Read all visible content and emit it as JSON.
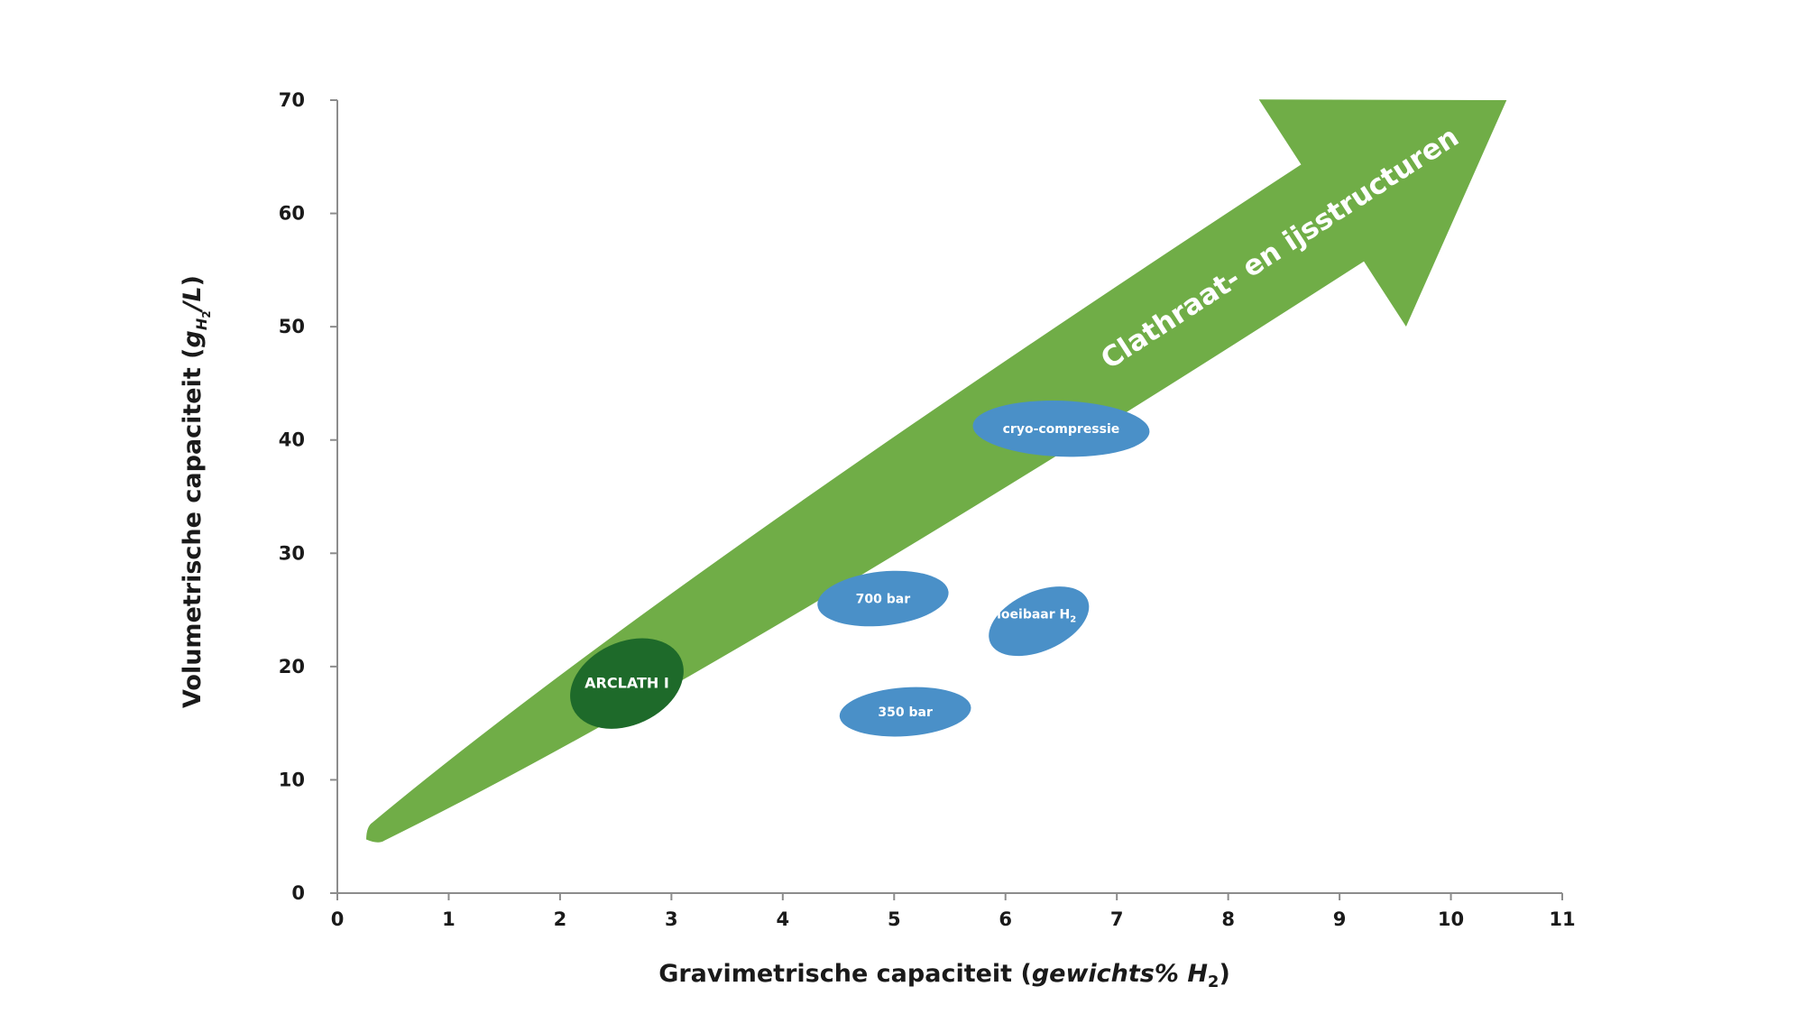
{
  "chart_data": {
    "type": "scatter",
    "xlabel": {
      "main": "Gravimetrische capaciteit (",
      "italic": "gewichts% H",
      "sub": "2",
      "close": ")"
    },
    "ylabel": {
      "main": "Volumetrische capaciteit (",
      "italic": "g",
      "sub": "H",
      "subsub": "2",
      "rest": "/L",
      "close": ")"
    },
    "xlim": [
      0,
      11
    ],
    "ylim": [
      0,
      70
    ],
    "x_ticks": [
      "0",
      "1",
      "2",
      "3",
      "4",
      "5",
      "6",
      "7",
      "8",
      "9",
      "10",
      "11"
    ],
    "y_ticks": [
      "0",
      "10",
      "20",
      "30",
      "40",
      "50",
      "60",
      "70"
    ],
    "grid": false,
    "arrow": {
      "label": "Clathraat- en ijsstructuren",
      "color": "#70ad47",
      "start": [
        0.3,
        5
      ],
      "end": [
        10.5,
        70
      ]
    },
    "regions": [
      {
        "name": "ARCLATH I",
        "x": 2.6,
        "y": 18.5,
        "color": "#1e6a2a"
      },
      {
        "name": "cryo-compressie",
        "x": 6.5,
        "y": 41,
        "color": "#4a90c8"
      },
      {
        "name": "700 bar",
        "x": 4.9,
        "y": 26,
        "color": "#4a90c8"
      },
      {
        "name": "Vloeibaar H",
        "name_sub": "2",
        "x": 6.3,
        "y": 24,
        "color": "#4a90c8"
      },
      {
        "name": "350 bar",
        "x": 5.1,
        "y": 16,
        "color": "#4a90c8"
      }
    ]
  }
}
